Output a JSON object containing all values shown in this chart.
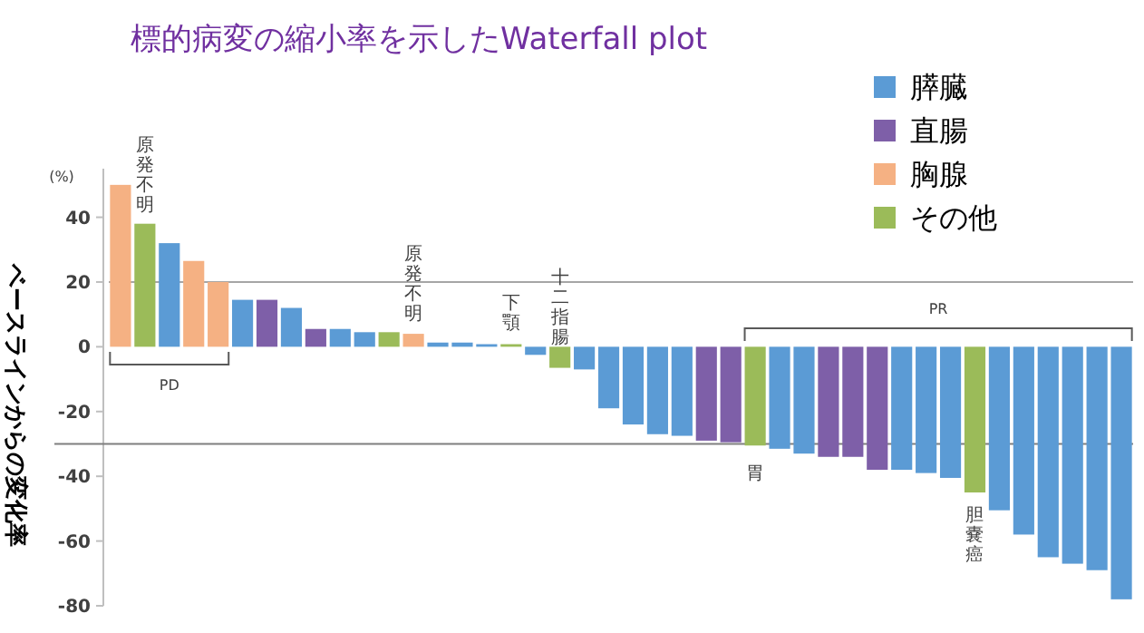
{
  "chart_data": {
    "type": "bar",
    "title": "標的病変の縮小率を示したWaterfall plot",
    "ylabel": "ベースラインからの変化率",
    "stacked": true,
    "legend": "top right",
    "grid": false,
    "tick_labels": "y",
    "categories": [
      null,
      null,
      null,
      null,
      null,
      null,
      null,
      null,
      null,
      null,
      null,
      null,
      null,
      null,
      null,
      null,
      null,
      null,
      null,
      null,
      null,
      null,
      null,
      null,
      null,
      null,
      null,
      null,
      null,
      null,
      null,
      null,
      null,
      null,
      null,
      null,
      null,
      null,
      null,
      null,
      null,
      null
    ],
    "ylim": [
      -80,
      55
    ],
    "yticks": [
      -80,
      -60,
      -40,
      -20,
      0,
      20,
      40
    ],
    "series": [
      {
        "name": "膵臓",
        "color": "#5b9bd5",
        "values": [
          null,
          null,
          32,
          null,
          null,
          14.5,
          null,
          12,
          null,
          5.5,
          4.5,
          null,
          null,
          1.3,
          1.3,
          0.8,
          null,
          -2.5,
          null,
          -7,
          -19,
          -24,
          -27,
          -27.5,
          null,
          null,
          null,
          -31.5,
          -33,
          null,
          null,
          null,
          -38,
          -39,
          -40.5,
          null,
          -50.5,
          -58,
          -65,
          -67,
          -69,
          -78
        ]
      },
      {
        "name": "直腸",
        "color": "#7e5fa8",
        "values": [
          null,
          null,
          null,
          null,
          null,
          null,
          14.5,
          null,
          5.5,
          null,
          null,
          null,
          null,
          null,
          null,
          null,
          null,
          null,
          null,
          null,
          null,
          null,
          null,
          null,
          -29,
          -29.5,
          null,
          null,
          null,
          -34,
          -34,
          -38,
          null,
          null,
          null,
          null,
          null,
          null,
          null,
          null,
          null,
          null
        ]
      },
      {
        "name": "胸腺",
        "color": "#f5b183",
        "values": [
          50,
          null,
          null,
          26.5,
          20,
          null,
          null,
          null,
          null,
          null,
          null,
          null,
          4,
          null,
          null,
          null,
          null,
          null,
          null,
          null,
          null,
          null,
          null,
          null,
          null,
          null,
          null,
          null,
          null,
          null,
          null,
          null,
          null,
          null,
          null,
          null,
          null,
          null,
          null,
          null,
          null,
          null
        ]
      },
      {
        "name": "その他",
        "color": "#9bbb59",
        "values": [
          null,
          38,
          null,
          null,
          null,
          null,
          null,
          null,
          null,
          null,
          null,
          4.5,
          null,
          null,
          null,
          null,
          0.8,
          null,
          -6.5,
          null,
          null,
          null,
          null,
          null,
          null,
          null,
          -30.5,
          null,
          null,
          null,
          null,
          null,
          null,
          null,
          null,
          -45,
          null,
          null,
          null,
          null,
          null,
          null
        ]
      }
    ],
    "ref_lines": [
      {
        "axis": "y",
        "value": 20,
        "color": "#a6a6a6"
      },
      {
        "axis": "y",
        "value": -30,
        "color": "#7f7f7f"
      }
    ],
    "annotations": [
      "(%)",
      "原発不明",
      "原発不明",
      "下顎",
      "十二指腸",
      "胃",
      "胆嚢癌",
      "PD",
      "PR"
    ]
  }
}
